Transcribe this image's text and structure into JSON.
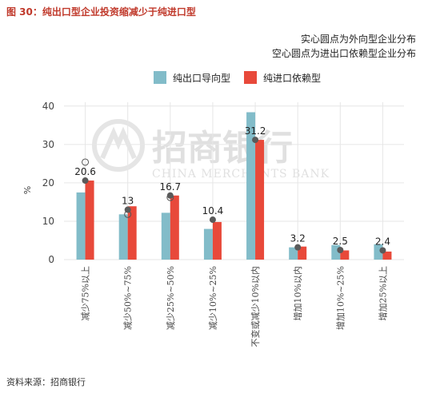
{
  "figure_title": "图 30：纯出口型企业投资缩减少于纯进口型",
  "source_note": "资料来源：招商银行",
  "watermark": {
    "cn": "招商银行",
    "en": "CHINA MERCHANTS BANK"
  },
  "colors": {
    "export": "#82bcc9",
    "import": "#e8493a",
    "dot": "#5a5a5a",
    "grid": "#e6e6e6"
  },
  "chart_data": {
    "type": "bar",
    "title": "",
    "notes": [
      "实心圆点为外向型企业分布",
      "空心圆点为进出口依赖型企业分布"
    ],
    "ylabel": "%",
    "ylim": [
      0,
      41
    ],
    "yticks": [
      0,
      10,
      20,
      30,
      40
    ],
    "legend_position": "top",
    "grid": true,
    "categories": [
      "减少75%以上",
      "减少50%~75%",
      "减少25%~50%",
      "减少10%~25%",
      "不变或减少10%以内",
      "增加10%以内",
      "增加10%~25%",
      "增加25%以上"
    ],
    "series": [
      {
        "name": "纯出口导向型",
        "values": [
          17.5,
          11.8,
          12.2,
          8.0,
          38.4,
          3.2,
          3.8,
          4.0
        ]
      },
      {
        "name": "纯进口依赖型",
        "values": [
          20.6,
          13.9,
          16.7,
          9.8,
          31.2,
          3.4,
          2.4,
          2.1
        ]
      }
    ],
    "data_labels": [
      "20.6",
      "13",
      "16.7",
      "10.4",
      "31.2",
      "3.2",
      "2.5",
      "2.4"
    ],
    "solid_points": [
      20.6,
      13.0,
      16.7,
      10.4,
      31.2,
      3.2,
      2.5,
      2.4
    ],
    "hollow_points": [
      25.4,
      11.8,
      16.2,
      null,
      null,
      null,
      null,
      null
    ]
  }
}
